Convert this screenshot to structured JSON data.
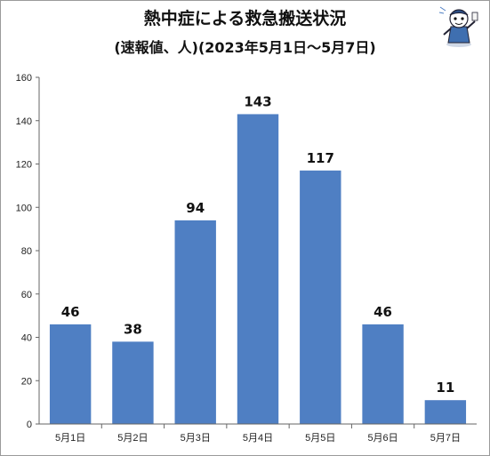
{
  "header": {
    "title": "熱中症による救急搬送状況",
    "subtitle": "(速報値、人)(2023年5月1日～5月7日)"
  },
  "chart_data": {
    "type": "bar",
    "categories": [
      "5月1日",
      "5月2日",
      "5月3日",
      "5月4日",
      "5月5日",
      "5月6日",
      "5月7日"
    ],
    "values": [
      46,
      38,
      94,
      143,
      117,
      46,
      11
    ],
    "title": "熱中症による救急搬送状況",
    "subtitle": "(速報値、人)(2023年5月1日～5月7日)",
    "xlabel": "",
    "ylabel": "",
    "ylim": [
      0,
      160
    ],
    "yticks": [
      0,
      20,
      40,
      60,
      80,
      100,
      120,
      140,
      160
    ],
    "grid": false,
    "legend": "none",
    "data_labels": true,
    "bar_color": "#4f7fc3"
  },
  "mascot": {
    "icon": "mascot-character-icon"
  }
}
